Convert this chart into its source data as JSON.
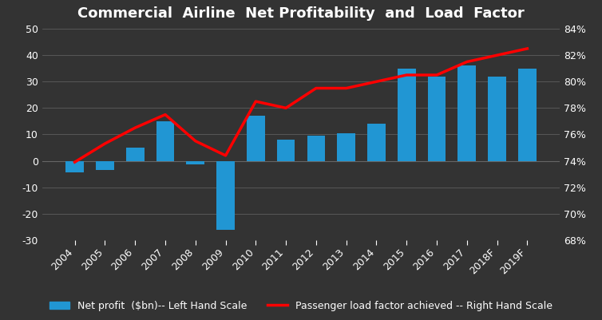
{
  "title": "Commercial  Airline  Net Profitability  and  Load  Factor",
  "years": [
    "2004",
    "2005",
    "2006",
    "2007",
    "2008",
    "2009",
    "2010",
    "2011",
    "2012",
    "2013",
    "2014",
    "2015",
    "2016",
    "2017",
    "2018F",
    "2019F"
  ],
  "net_profit": [
    -4.5,
    -3.5,
    5,
    15,
    -1.5,
    -26,
    17,
    8,
    9.5,
    10.5,
    14,
    35,
    32,
    36,
    32,
    35
  ],
  "load_factor": [
    73.9,
    75.3,
    76.5,
    77.5,
    75.5,
    74.4,
    78.5,
    78.0,
    79.5,
    79.5,
    80.0,
    80.5,
    80.5,
    81.5,
    82.0,
    82.5
  ],
  "bar_color": "#2196D3",
  "line_color": "#FF0000",
  "background_color": "#333333",
  "text_color": "#ffffff",
  "grid_color": "#666666",
  "ylim_left": [
    -30,
    50
  ],
  "ylim_right": [
    68,
    84
  ],
  "yticks_left": [
    -30,
    -20,
    -10,
    0,
    10,
    20,
    30,
    40,
    50
  ],
  "yticks_right": [
    68,
    70,
    72,
    74,
    76,
    78,
    80,
    82,
    84
  ],
  "legend_bar": "Net profit  ($bn)-- Left Hand Scale",
  "legend_line": "Passenger load factor achieved -- Right Hand Scale",
  "title_fontsize": 13,
  "tick_fontsize": 9,
  "legend_fontsize": 9
}
